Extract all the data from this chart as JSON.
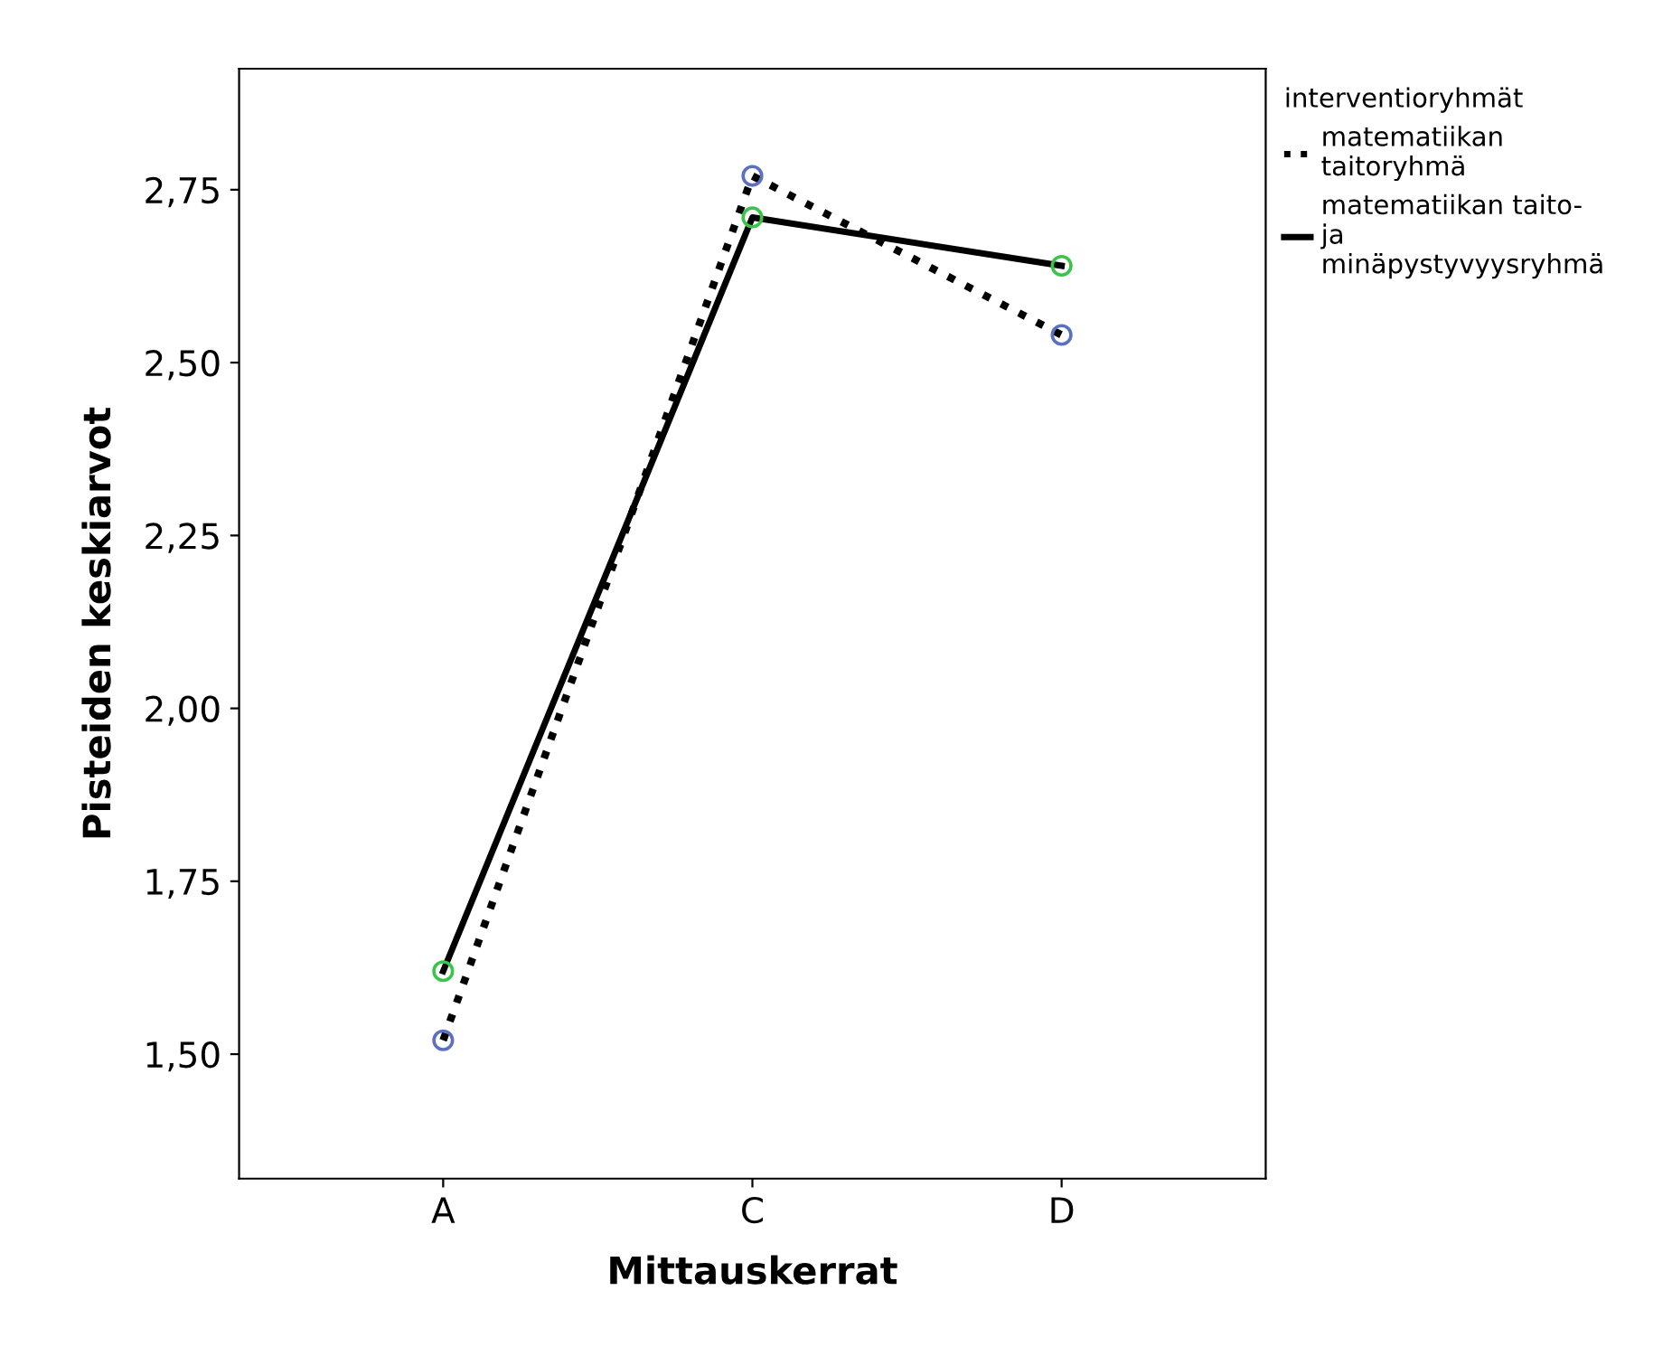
{
  "chart_data": {
    "type": "line",
    "xlabel": "Mittauskerrat",
    "ylabel": "Pisteiden keskiarvot",
    "legend_title": "interventioryhmät",
    "categories": [
      "A",
      "C",
      "D"
    ],
    "series": [
      {
        "name": "matematiikan\ntaitoryhmä",
        "color": "#000000",
        "colors": [
          "#5b6fc4",
          "#5b6fc4",
          "#5b6fc4"
        ],
        "line_style": "dotted",
        "values": [
          1.52,
          2.77,
          2.54
        ]
      },
      {
        "name": "matematiikan taito-\nja\nminäpystyvyysryhmä",
        "color": "#000000",
        "colors": [
          "#3cc44a",
          "#3cc44a",
          "#3cc44a"
        ],
        "line_style": "solid",
        "values": [
          1.62,
          2.71,
          2.64
        ]
      }
    ],
    "ylim": [
      1.32,
      2.925
    ],
    "yticks": [
      {
        "value": 1.5,
        "label": "1,50"
      },
      {
        "value": 1.75,
        "label": "1,75"
      },
      {
        "value": 2.0,
        "label": "2,00"
      },
      {
        "value": 2.25,
        "label": "2,25"
      },
      {
        "value": 2.5,
        "label": "2,50"
      },
      {
        "value": 2.75,
        "label": "2,75"
      }
    ],
    "marker": "circle",
    "legend": "right",
    "grid": false
  }
}
